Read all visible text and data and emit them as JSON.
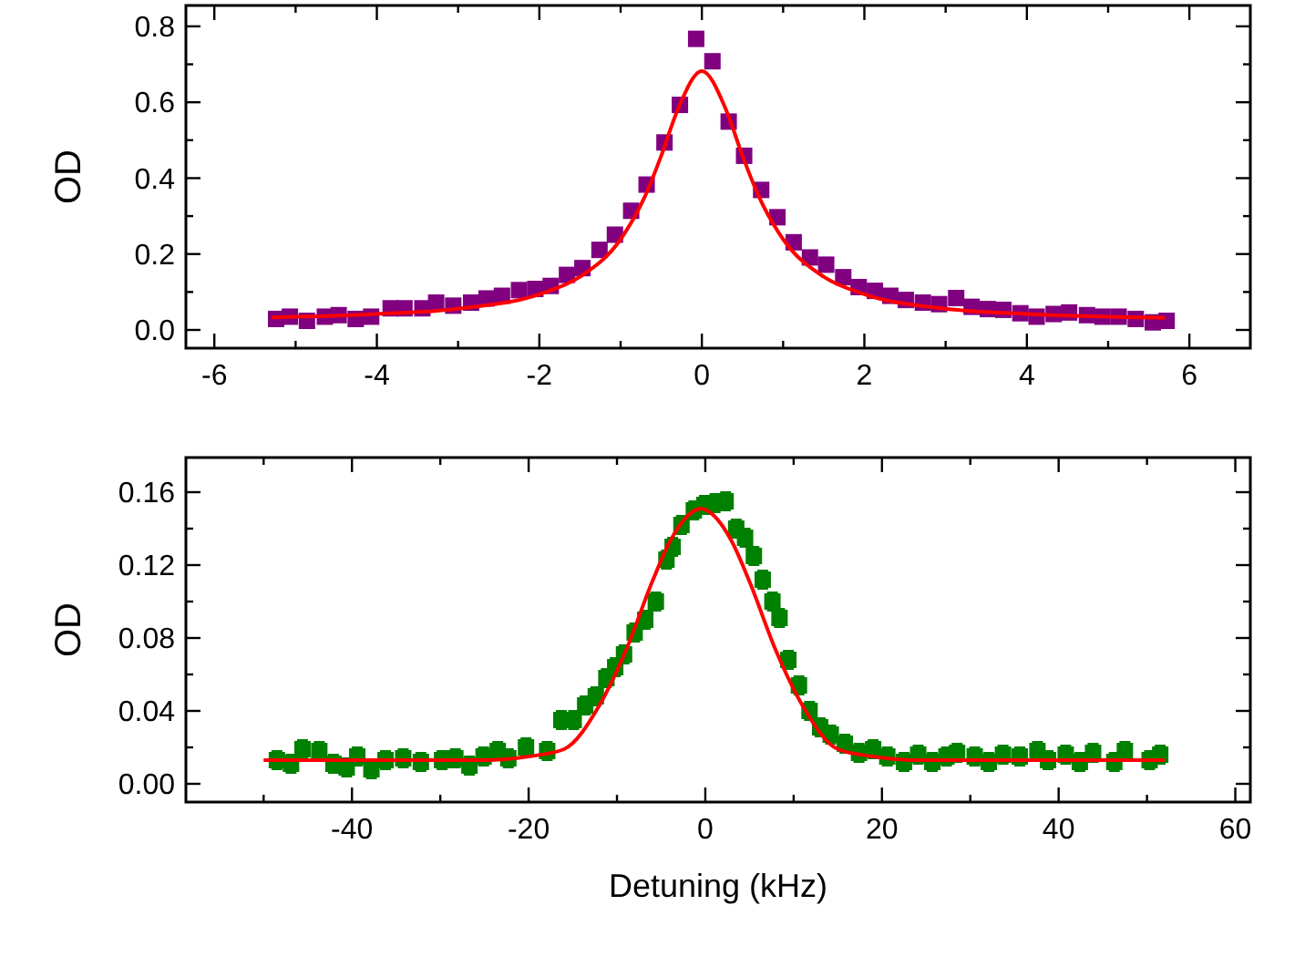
{
  "chart_data": [
    {
      "type": "scatter",
      "ylabel": "OD",
      "xlim": [
        -6.35,
        6.75
      ],
      "ylim": [
        -0.048,
        0.855
      ],
      "xticks": [
        -6,
        {
          "value": -5,
          "label": null
        },
        -4,
        {
          "value": -3,
          "label": null
        },
        -2,
        {
          "value": -1,
          "label": null
        },
        0,
        {
          "value": 1,
          "label": null
        },
        2,
        {
          "value": 3,
          "label": null
        },
        4,
        {
          "value": 5,
          "label": null
        },
        6
      ],
      "yticks": [
        {
          "value": 0,
          "label": "0.0"
        },
        {
          "value": 0.1,
          "label": null
        },
        0.2,
        {
          "value": 0.3,
          "label": null
        },
        0.4,
        {
          "value": 0.5,
          "label": null
        },
        0.6,
        {
          "value": 0.7,
          "label": null
        },
        0.8
      ],
      "grid": false,
      "series": [
        {
          "marker": "square",
          "color": "#800080",
          "x": [
            -5.24,
            -5.07,
            -4.86,
            -4.64,
            -4.47,
            -4.26,
            -4.07,
            -3.83,
            -3.66,
            -3.44,
            -3.27,
            -3.06,
            -2.84,
            -2.65,
            -2.46,
            -2.25,
            -2.05,
            -1.86,
            -1.66,
            -1.47,
            -1.26,
            -1.07,
            -0.87,
            -0.68,
            -0.46,
            -0.27,
            -0.07,
            0.13,
            0.33,
            0.52,
            0.73,
            0.93,
            1.13,
            1.33,
            1.53,
            1.74,
            1.93,
            2.13,
            2.32,
            2.51,
            2.72,
            2.92,
            3.13,
            3.32,
            3.52,
            3.71,
            3.92,
            4.12,
            4.33,
            4.52,
            4.74,
            4.93,
            5.13,
            5.34,
            5.55,
            5.72
          ],
          "values": [
            0.029,
            0.035,
            0.024,
            0.035,
            0.039,
            0.029,
            0.035,
            0.057,
            0.057,
            0.057,
            0.072,
            0.064,
            0.072,
            0.083,
            0.09,
            0.105,
            0.108,
            0.116,
            0.145,
            0.163,
            0.211,
            0.251,
            0.314,
            0.383,
            0.494,
            0.593,
            0.767,
            0.708,
            0.549,
            0.459,
            0.369,
            0.297,
            0.231,
            0.191,
            0.172,
            0.139,
            0.113,
            0.103,
            0.09,
            0.079,
            0.072,
            0.068,
            0.084,
            0.061,
            0.055,
            0.053,
            0.044,
            0.035,
            0.042,
            0.046,
            0.039,
            0.035,
            0.035,
            0.029,
            0.02,
            0.024
          ]
        },
        {
          "type": "line",
          "marker": "none",
          "line_style": "solid",
          "color": "#ff0000",
          "x": [
            -5.3,
            -4,
            -3,
            -2,
            -1.5,
            -1,
            -0.7,
            -0.5,
            -0.3,
            0,
            0.3,
            0.5,
            0.7,
            1,
            1.5,
            2,
            3,
            4,
            5.7
          ],
          "values": [
            0.033,
            0.042,
            0.056,
            0.094,
            0.14,
            0.239,
            0.352,
            0.459,
            0.579,
            0.682,
            0.579,
            0.459,
            0.352,
            0.239,
            0.14,
            0.094,
            0.056,
            0.042,
            0.032
          ]
        }
      ]
    },
    {
      "type": "scatter",
      "xlabel": "Detuning (kHz)",
      "ylabel": "OD",
      "xlim": [
        -58.8,
        61.7
      ],
      "ylim": [
        -0.01,
        0.179
      ],
      "xticks": [
        {
          "value": -50,
          "label": null
        },
        -40,
        {
          "value": -30,
          "label": null
        },
        -20,
        {
          "value": -10,
          "label": null
        },
        0,
        {
          "value": 10,
          "label": null
        },
        20,
        {
          "value": 30,
          "label": null
        },
        40,
        {
          "value": 50,
          "label": null
        },
        60
      ],
      "yticks": [
        {
          "value": 0,
          "label": "0.00"
        },
        {
          "value": 0.02,
          "label": null
        },
        0.04,
        {
          "value": 0.06,
          "label": null
        },
        0.08,
        {
          "value": 0.1,
          "label": null
        },
        0.12,
        {
          "value": 0.14,
          "label": null
        },
        0.16
      ],
      "grid": false,
      "series": [
        {
          "marker": "square",
          "color": "#008000",
          "x": [
            -48.5,
            -46.9,
            -45.6,
            -43.7,
            -42.1,
            -40.6,
            -39.4,
            -37.8,
            -36.2,
            -34.2,
            -32.2,
            -29.8,
            -28.3,
            -26.7,
            -25.1,
            -23.5,
            -22.3,
            -20.3,
            -17.9,
            -16.3,
            -14.9,
            -13.6,
            -12.4,
            -11.2,
            -10.2,
            -9.2,
            -8,
            -6.8,
            -5.6,
            -4.4,
            -3.7,
            -2.7,
            -1.3,
            -0.1,
            1.1,
            2.3,
            3.5,
            4.5,
            5.5,
            6.5,
            7.6,
            8.4,
            9.4,
            10.6,
            11.8,
            13,
            14.2,
            15.8,
            17.4,
            19,
            20.6,
            22.5,
            24.1,
            25.7,
            27.3,
            28.5,
            30.5,
            32.1,
            33.7,
            35.6,
            37.6,
            38.8,
            40.8,
            42.4,
            43.9,
            46.3,
            47.5,
            50.3,
            51.5
          ],
          "values": [
            0.013,
            0.011,
            0.019,
            0.018,
            0.011,
            0.009,
            0.015,
            0.008,
            0.013,
            0.014,
            0.012,
            0.013,
            0.014,
            0.01,
            0.015,
            0.018,
            0.014,
            0.02,
            0.018,
            0.035,
            0.035,
            0.043,
            0.048,
            0.058,
            0.064,
            0.071,
            0.083,
            0.09,
            0.1,
            0.123,
            0.13,
            0.142,
            0.15,
            0.153,
            0.154,
            0.155,
            0.14,
            0.135,
            0.125,
            0.112,
            0.1,
            0.091,
            0.068,
            0.054,
            0.04,
            0.031,
            0.027,
            0.022,
            0.017,
            0.019,
            0.015,
            0.012,
            0.016,
            0.012,
            0.015,
            0.017,
            0.015,
            0.012,
            0.016,
            0.015,
            0.018,
            0.013,
            0.016,
            0.012,
            0.017,
            0.012,
            0.018,
            0.013,
            0.016
          ],
          "errors": [
            0.005,
            0.005,
            0.005,
            0.005,
            0.005,
            0.005,
            0.005,
            0.005,
            0.005,
            0.005,
            0.005,
            0.005,
            0.005,
            0.005,
            0.005,
            0.005,
            0.005,
            0.005,
            0.005,
            0.005,
            0.005,
            0.005,
            0.005,
            0.005,
            0.005,
            0.005,
            0.005,
            0.005,
            0.005,
            0.005,
            0.005,
            0.005,
            0.005,
            0.005,
            0.005,
            0.005,
            0.005,
            0.005,
            0.005,
            0.005,
            0.005,
            0.005,
            0.005,
            0.005,
            0.005,
            0.005,
            0.005,
            0.005,
            0.005,
            0.005,
            0.005,
            0.005,
            0.005,
            0.005,
            0.005,
            0.005,
            0.005,
            0.005,
            0.005,
            0.005,
            0.005,
            0.005,
            0.005,
            0.005,
            0.005,
            0.005,
            0.005,
            0.005,
            0.005
          ]
        },
        {
          "type": "line",
          "marker": "none",
          "line_style": "solid",
          "color": "#ff0000",
          "x": [
            -50,
            -25,
            -20,
            -16,
            -12,
            -9,
            -6,
            -4,
            -2,
            -0.5,
            1,
            3,
            5,
            8,
            11,
            15,
            19,
            24,
            52
          ],
          "values": [
            0.013,
            0.013,
            0.015,
            0.019,
            0.043,
            0.073,
            0.111,
            0.133,
            0.147,
            0.151,
            0.147,
            0.133,
            0.111,
            0.073,
            0.043,
            0.019,
            0.015,
            0.013,
            0.013
          ]
        }
      ]
    }
  ]
}
